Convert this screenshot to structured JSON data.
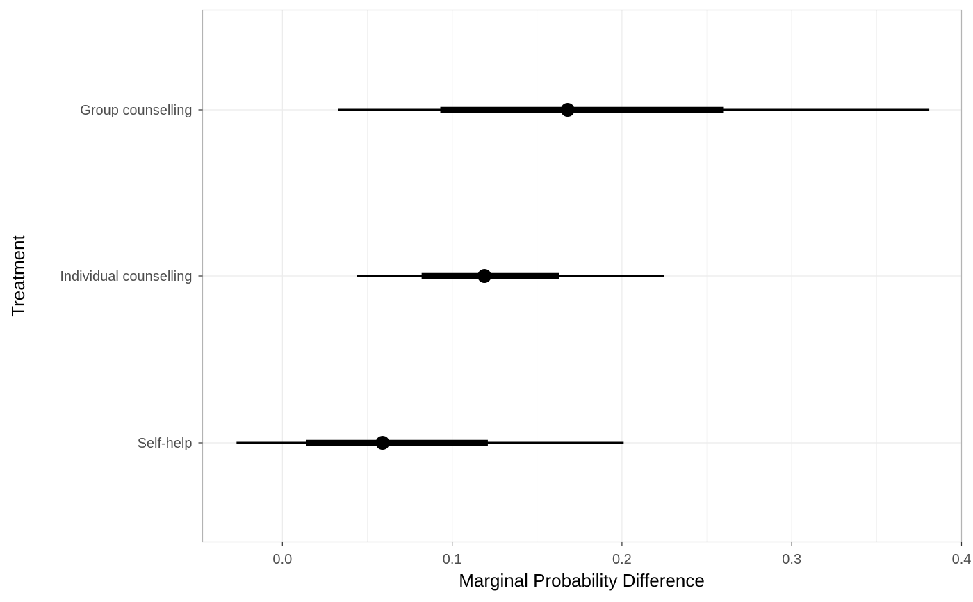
{
  "chart_data": {
    "type": "pointrange",
    "title": "",
    "xlabel": "Marginal Probability Difference",
    "ylabel": "Treatment",
    "xlim": [
      -0.047,
      0.4
    ],
    "x_ticks": [
      0.0,
      0.1,
      0.2,
      0.3,
      0.4
    ],
    "x_tick_labels": [
      "0.0",
      "0.1",
      "0.2",
      "0.3",
      "0.4"
    ],
    "x_minor_ticks": [
      0.05,
      0.15,
      0.25,
      0.35
    ],
    "categories": [
      "Group counselling",
      "Individual counselling",
      "Self-help"
    ],
    "points": [
      {
        "label": "Group counselling",
        "estimate": 0.168,
        "inner": [
          0.093,
          0.26
        ],
        "outer": [
          0.033,
          0.381
        ]
      },
      {
        "label": "Individual counselling",
        "estimate": 0.119,
        "inner": [
          0.082,
          0.163
        ],
        "outer": [
          0.044,
          0.225
        ]
      },
      {
        "label": "Self-help",
        "estimate": 0.059,
        "inner": [
          0.014,
          0.121
        ],
        "outer": [
          -0.027,
          0.201
        ]
      }
    ],
    "grid": true,
    "colors": {
      "mark": "#000000",
      "grid": "#ebebeb",
      "panel_border": "#b3b3b3",
      "tick_text": "#4d4d4d",
      "axis_title": "#000000"
    }
  }
}
